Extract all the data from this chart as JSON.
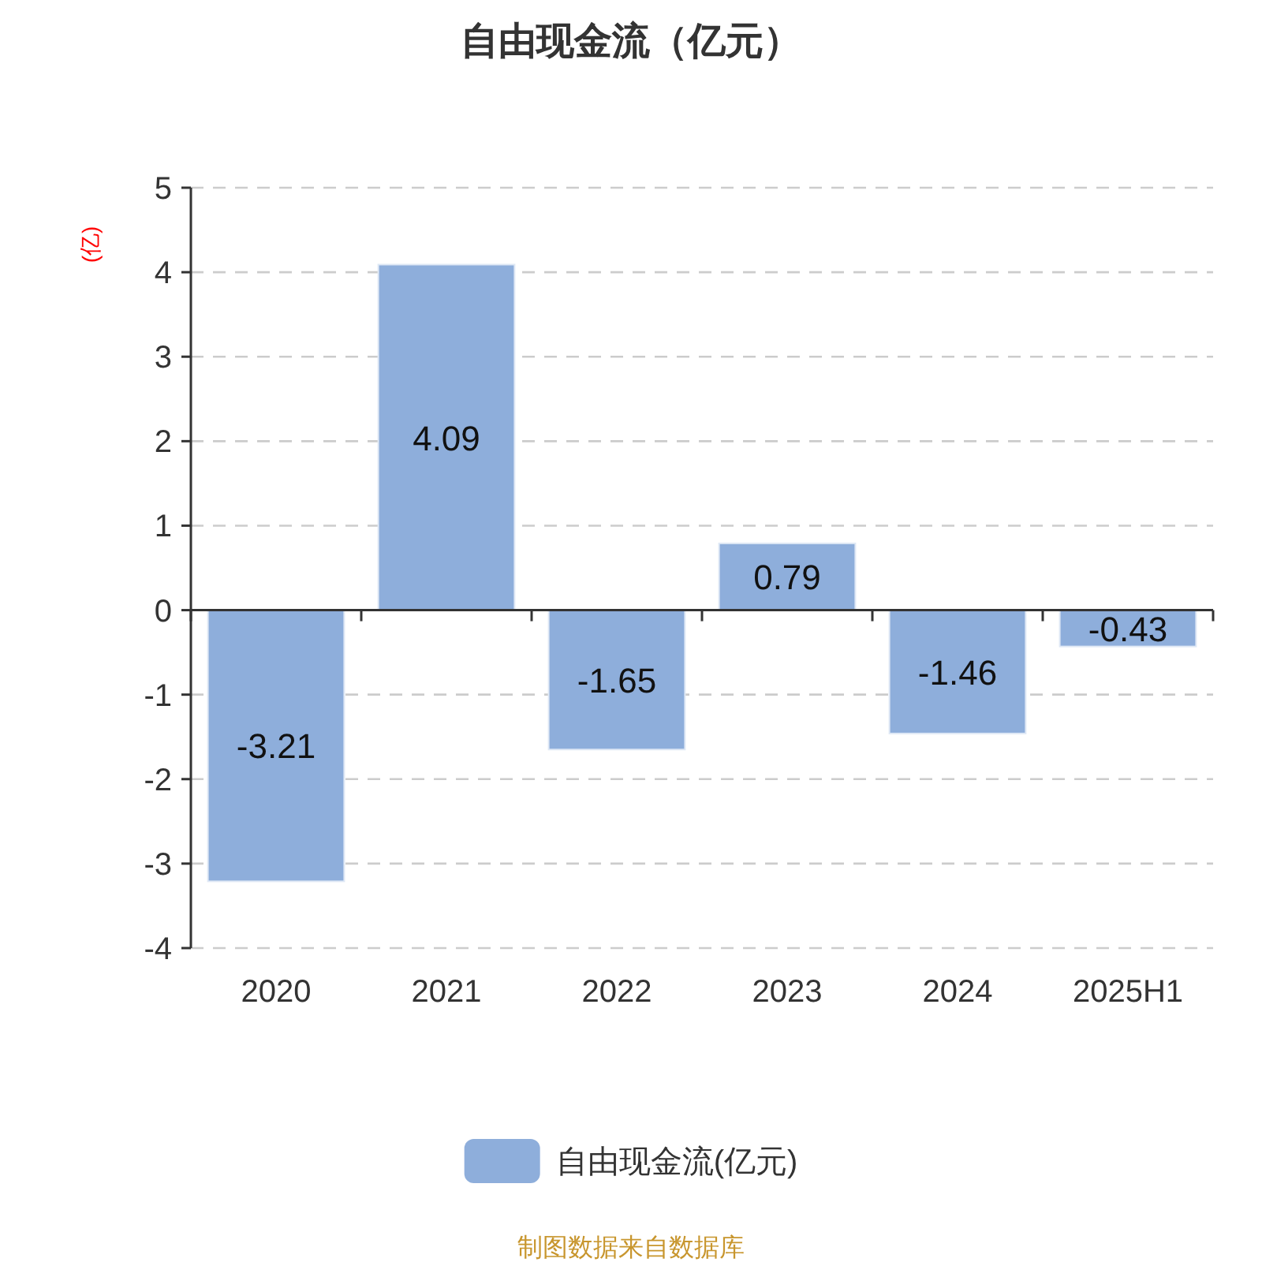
{
  "chart_data": {
    "type": "bar",
    "title": "自由现金流（亿元）",
    "ylabel": "(亿)",
    "categories": [
      "2020",
      "2021",
      "2022",
      "2023",
      "2024",
      "2025H1"
    ],
    "series": [
      {
        "name": "自由现金流(亿元)",
        "color": "#8eaedb",
        "values": [
          -3.21,
          4.09,
          -1.65,
          0.79,
          -1.46,
          -0.43
        ]
      }
    ],
    "ylim": [
      -4,
      5
    ],
    "yticks": [
      -4,
      -3,
      -2,
      -1,
      0,
      1,
      2,
      3,
      4,
      5
    ],
    "grid": "y",
    "legend": "bottom",
    "data_labels": true,
    "annotations": [
      "制图数据来自数据库"
    ]
  }
}
